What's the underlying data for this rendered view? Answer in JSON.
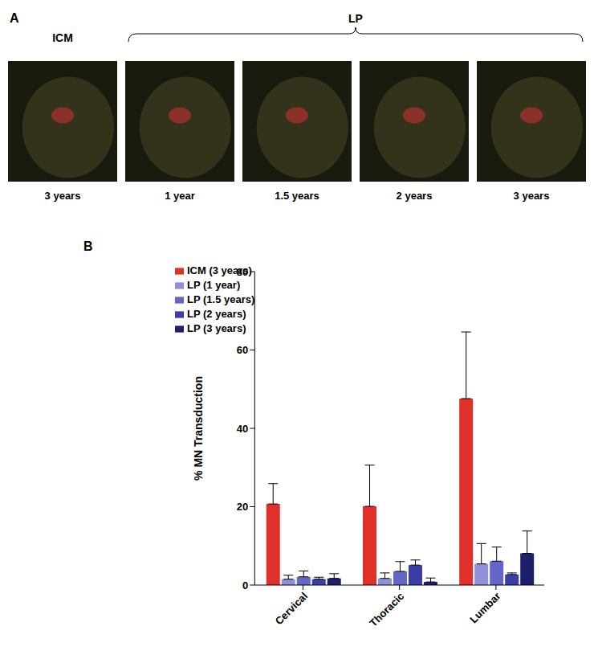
{
  "panel_a": {
    "label": "A",
    "groups": [
      {
        "name": "ICM",
        "images": [
          "3 years"
        ]
      },
      {
        "name": "LP",
        "images": [
          "1 year",
          "1.5 years",
          "2 years",
          "3 years"
        ]
      }
    ]
  },
  "chart_data": {
    "panel_label": "B",
    "type": "bar",
    "y_label": "% MN Transduction",
    "categories": [
      "Cervical",
      "Thoracic",
      "Lumbar"
    ],
    "series": [
      {
        "name": "ICM (3 years)",
        "color": "#e0302a",
        "values": [
          20.7,
          20.1,
          47.6
        ],
        "errors": [
          5.2,
          10.5,
          17.0
        ]
      },
      {
        "name": "LP (1 year)",
        "color": "#8f90d8",
        "values": [
          1.5,
          1.7,
          5.4
        ],
        "errors": [
          1.0,
          1.4,
          5.2
        ]
      },
      {
        "name": "LP (1.5 years)",
        "color": "#6567c8",
        "values": [
          2.1,
          3.5,
          6.1
        ],
        "errors": [
          1.5,
          2.5,
          3.6
        ]
      },
      {
        "name": "LP (2 years)",
        "color": "#3a3da6",
        "values": [
          1.5,
          5.1,
          2.7
        ],
        "errors": [
          0.5,
          1.3,
          0.4
        ]
      },
      {
        "name": "LP (3 years)",
        "color": "#1d1f6b",
        "values": [
          1.7,
          0.8,
          8.1
        ],
        "errors": [
          1.2,
          1.0,
          5.7
        ]
      }
    ],
    "ylim": [
      0,
      80
    ],
    "yticks": [
      0,
      20,
      40,
      60,
      80
    ],
    "grid": false,
    "legend": "upper left"
  }
}
